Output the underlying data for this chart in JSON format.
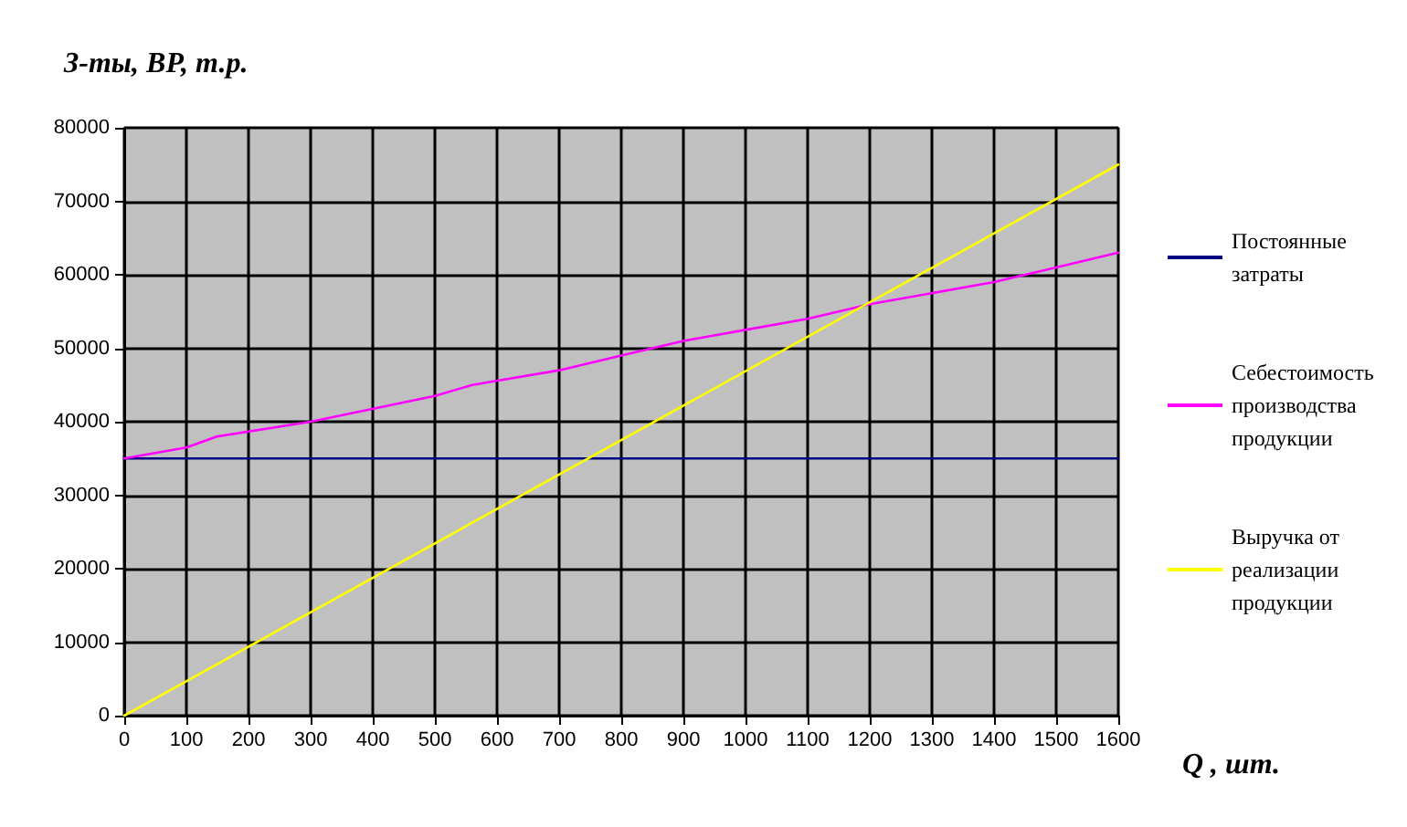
{
  "chart_data": {
    "type": "line",
    "ylabel": "З-ты, ВР, т.р.",
    "xlabel": "Q , шт.",
    "series": [
      {
        "name": "Постоянные затраты",
        "color": "#000080",
        "x": [
          0,
          1600
        ],
        "values": [
          35000,
          35000
        ]
      },
      {
        "name": "Себестоимость производства продукции",
        "color": "#ff00ff",
        "x": [
          0,
          100,
          150,
          300,
          500,
          560,
          700,
          800,
          900,
          1000,
          1100,
          1200,
          1300,
          1400,
          1500,
          1600
        ],
        "values": [
          35000,
          36500,
          38000,
          40000,
          43500,
          45000,
          47000,
          49000,
          51000,
          52500,
          54000,
          56000,
          57500,
          59000,
          61000,
          63000
        ]
      },
      {
        "name": "Выручка от реализации продукции",
        "color": "#ffff00",
        "x": [
          0,
          1600
        ],
        "values": [
          0,
          75000
        ]
      }
    ],
    "xlim": [
      0,
      1600
    ],
    "xticks": [
      0,
      100,
      200,
      300,
      400,
      500,
      600,
      700,
      800,
      900,
      1000,
      1100,
      1200,
      1300,
      1400,
      1500,
      1600
    ],
    "ylim": [
      0,
      80000
    ],
    "yticks": [
      0,
      10000,
      20000,
      30000,
      40000,
      50000,
      60000,
      70000,
      80000
    ],
    "grid": true,
    "legend": "right",
    "marker": "none",
    "line_style": "solid"
  }
}
